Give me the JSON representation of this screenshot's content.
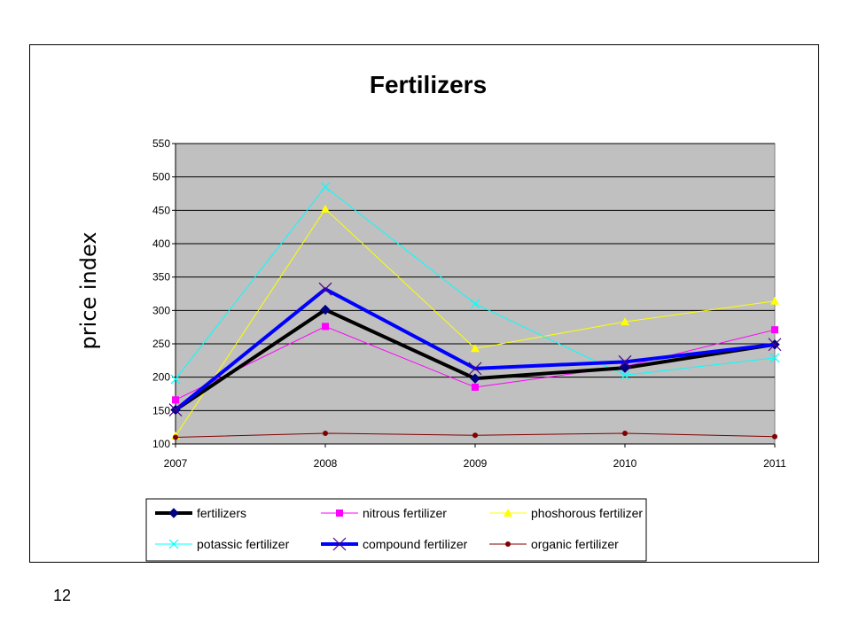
{
  "page": {
    "number": "12"
  },
  "chart_data": {
    "type": "line",
    "title": "Fertilizers",
    "xlabel": "",
    "ylabel": "price index",
    "categories": [
      "2007",
      "2008",
      "2009",
      "2010",
      "2011"
    ],
    "ylim": [
      100,
      550
    ],
    "yticks": [
      "100",
      "150",
      "200",
      "250",
      "300",
      "350",
      "400",
      "450",
      "500",
      "550"
    ],
    "grid": true,
    "legend_position": "bottom",
    "plot_background": "#c0c0c0",
    "series": [
      {
        "name": "fertilizers",
        "values": [
          151,
          301,
          198,
          214,
          249
        ],
        "color": "#000000",
        "marker": "diamond",
        "width": 4
      },
      {
        "name": "nitrous fertilizer",
        "values": [
          166,
          276,
          185,
          216,
          271
        ],
        "color": "#ff00ff",
        "marker": "square",
        "width": 1
      },
      {
        "name": "phoshorous fertilizer",
        "values": [
          112,
          452,
          243,
          283,
          314
        ],
        "color": "#ffff00",
        "marker": "triangle",
        "width": 1
      },
      {
        "name": "potassic fertilizer",
        "values": [
          197,
          485,
          310,
          203,
          229
        ],
        "color": "#00ffff",
        "marker": "x",
        "width": 1
      },
      {
        "name": "compound fertilizer",
        "values": [
          151,
          332,
          213,
          223,
          249
        ],
        "color": "#0000ff",
        "marker": "star",
        "width": 4
      },
      {
        "name": "organic fertilizer",
        "values": [
          110,
          116,
          113,
          116,
          111
        ],
        "color": "#800000",
        "marker": "circle",
        "width": 1
      }
    ]
  }
}
